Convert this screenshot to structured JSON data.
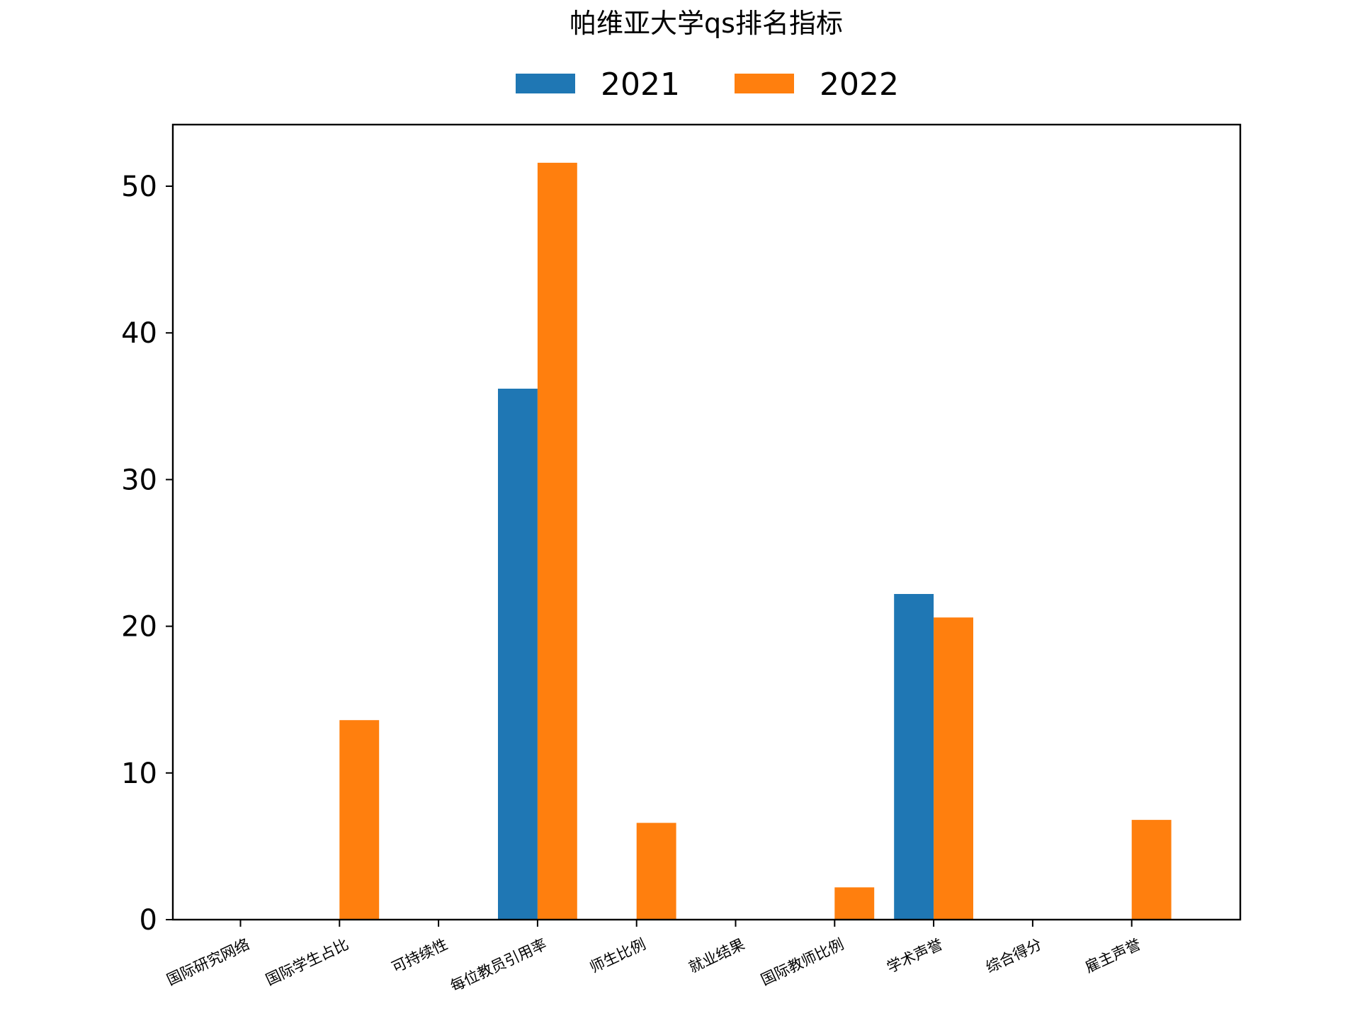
{
  "chart_data": {
    "type": "bar",
    "title": "帕维亚大学qs排名指标",
    "xlabel": "",
    "ylabel": "",
    "categories": [
      "国际研究网络",
      "国际学生占比",
      "可持续性",
      "每位教员引用率",
      "师生比例",
      "就业结果",
      "国际教师比例",
      "学术声誉",
      "综合得分",
      "雇主声誉"
    ],
    "series": [
      {
        "name": "2021",
        "color": "#1f77b4",
        "values": [
          0,
          0,
          0,
          36.2,
          0,
          0,
          0,
          22.2,
          0,
          0
        ]
      },
      {
        "name": "2022",
        "color": "#ff7f0e",
        "values": [
          0,
          13.6,
          0,
          51.6,
          6.6,
          0,
          2.2,
          20.6,
          0,
          6.8
        ]
      }
    ],
    "ylim": [
      0,
      54.2
    ],
    "yticks": [
      0,
      10,
      20,
      30,
      40,
      50
    ],
    "grid": false,
    "legend_position": "top-center"
  }
}
